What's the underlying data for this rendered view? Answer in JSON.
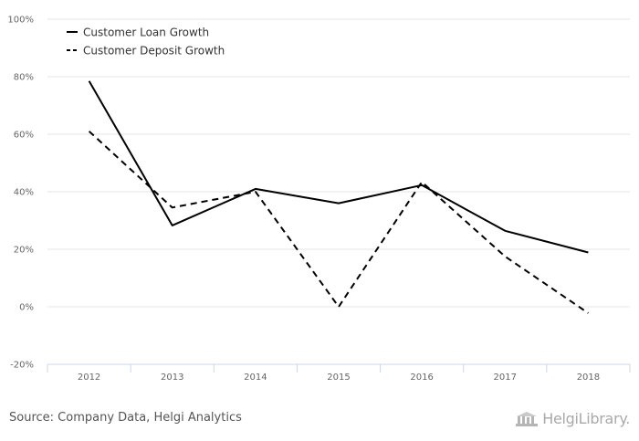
{
  "chart_data": {
    "type": "line",
    "title": "",
    "xlabel": "",
    "ylabel": "",
    "categories": [
      "2012",
      "2013",
      "2014",
      "2015",
      "2016",
      "2017",
      "2018"
    ],
    "ylim": [
      -20,
      100
    ],
    "yticks": [
      -20,
      0,
      20,
      40,
      60,
      80,
      100
    ],
    "ytick_labels": [
      "-20%",
      "0%",
      "20%",
      "40%",
      "60%",
      "80%",
      "100%"
    ],
    "grid": true,
    "legend_position": "top-left",
    "series": [
      {
        "name": "Customer Loan Growth",
        "style": "solid",
        "color": "#000000",
        "values": [
          78.5,
          28.3,
          41.0,
          36.0,
          42.3,
          26.4,
          18.9
        ]
      },
      {
        "name": "Customer Deposit Growth",
        "style": "dashed",
        "color": "#000000",
        "values": [
          61.0,
          34.5,
          40.0,
          0.0,
          43.4,
          17.5,
          -2.2
        ]
      }
    ]
  },
  "footer": {
    "source": "Source: Company Data, Helgi Analytics",
    "logo_text": "HelgiLibrary."
  }
}
